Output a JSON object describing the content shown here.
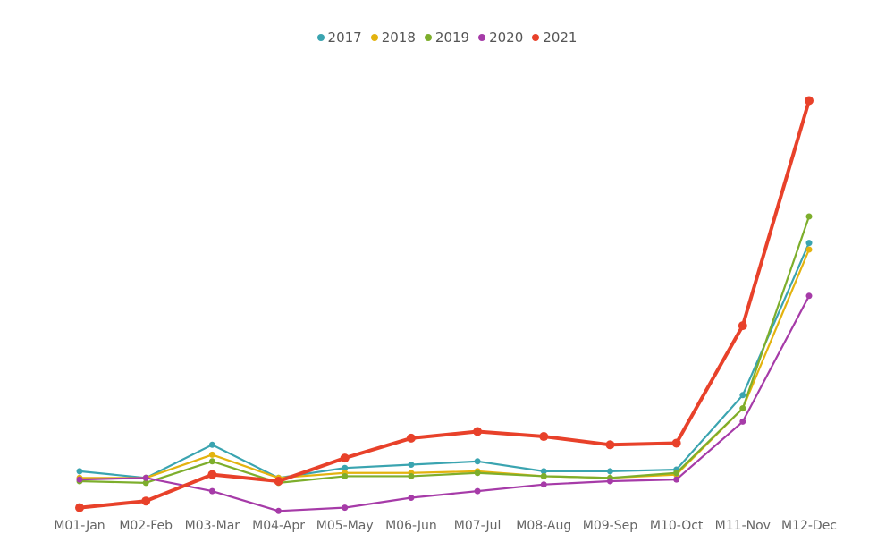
{
  "chart_data": {
    "type": "line",
    "categories": [
      "M01-Jan",
      "M02-Feb",
      "M03-Mar",
      "M04-Apr",
      "M05-May",
      "M06-Jun",
      "M07-Jul",
      "M08-Aug",
      "M09-Sep",
      "M10-Oct",
      "M11-Nov",
      "M12-Dec"
    ],
    "series": [
      {
        "name": "2017",
        "color": "#3AA4B0",
        "values": [
          13,
          11,
          21,
          11,
          14,
          15,
          16,
          13,
          13,
          13.5,
          36,
          82
        ]
      },
      {
        "name": "2018",
        "color": "#E3B30F",
        "values": [
          11,
          11,
          18,
          11,
          12.5,
          12.5,
          13,
          11.5,
          11,
          12,
          32,
          80
        ]
      },
      {
        "name": "2019",
        "color": "#7DAE2C",
        "values": [
          10,
          9.5,
          16,
          9.5,
          11.5,
          11.5,
          12.5,
          11.5,
          11,
          12.5,
          32,
          90
        ]
      },
      {
        "name": "2020",
        "color": "#A63BA8",
        "values": [
          10.5,
          11,
          7,
          1,
          2,
          5,
          7,
          9,
          10,
          10.5,
          28,
          66
        ]
      },
      {
        "name": "2021",
        "color": "#E8412A",
        "values": [
          2,
          4,
          12,
          10,
          17,
          23,
          25,
          23.5,
          21,
          21.5,
          57,
          125
        ]
      }
    ],
    "grid": false,
    "legend_position": "top-center"
  }
}
